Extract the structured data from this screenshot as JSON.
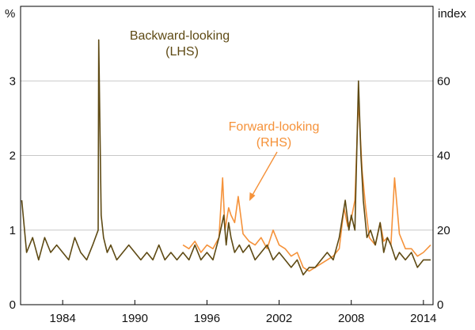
{
  "chart_data": {
    "type": "line",
    "left_axis": {
      "unit": "%",
      "ylim": [
        0,
        4
      ],
      "ticks": [
        0,
        1,
        2,
        3
      ]
    },
    "right_axis": {
      "unit": "index",
      "ylim": [
        0,
        80
      ],
      "ticks": [
        0,
        20,
        40,
        60
      ]
    },
    "x_axis": {
      "xlim": [
        1980.5,
        2014.8
      ],
      "ticks": [
        1984,
        1990,
        1996,
        2002,
        2008,
        2014
      ]
    },
    "grid": "horizontal",
    "colors": {
      "backward": "#5e4a14",
      "forward": "#f5923a"
    },
    "annotations": {
      "backward_title": "Backward-looking",
      "backward_sub": "(LHS)",
      "forward_title": "Forward-looking",
      "forward_sub": "(RHS)"
    },
    "series": [
      {
        "name": "Backward-looking",
        "axis": "left",
        "x": [
          1980.6,
          1981.0,
          1981.5,
          1982.0,
          1982.5,
          1983.0,
          1983.5,
          1984.0,
          1984.5,
          1985.0,
          1985.5,
          1986.0,
          1986.5,
          1986.95,
          1987.0,
          1987.2,
          1987.4,
          1987.7,
          1988.0,
          1988.5,
          1989.0,
          1989.5,
          1990.0,
          1990.5,
          1991.0,
          1991.5,
          1992.0,
          1992.5,
          1993.0,
          1993.5,
          1994.0,
          1994.5,
          1995.0,
          1995.5,
          1996.0,
          1996.5,
          1997.0,
          1997.4,
          1997.6,
          1997.8,
          1998.0,
          1998.3,
          1998.7,
          1999.0,
          1999.5,
          2000.0,
          2000.5,
          2001.0,
          2001.5,
          2002.0,
          2002.5,
          2003.0,
          2003.5,
          2004.0,
          2004.5,
          2005.0,
          2005.5,
          2006.0,
          2006.5,
          2007.0,
          2007.5,
          2007.8,
          2008.0,
          2008.3,
          2008.6,
          2008.8,
          2009.0,
          2009.3,
          2009.6,
          2010.0,
          2010.4,
          2010.7,
          2011.0,
          2011.3,
          2011.7,
          2012.0,
          2012.5,
          2013.0,
          2013.5,
          2014.0,
          2014.6
        ],
        "y": [
          1.4,
          0.7,
          0.9,
          0.6,
          0.9,
          0.7,
          0.8,
          0.7,
          0.6,
          0.9,
          0.7,
          0.6,
          0.8,
          1.0,
          3.55,
          1.2,
          0.9,
          0.7,
          0.8,
          0.6,
          0.7,
          0.8,
          0.7,
          0.6,
          0.7,
          0.6,
          0.8,
          0.6,
          0.7,
          0.6,
          0.7,
          0.6,
          0.8,
          0.6,
          0.7,
          0.6,
          0.9,
          1.2,
          0.8,
          1.1,
          0.9,
          0.7,
          0.8,
          0.7,
          0.8,
          0.6,
          0.7,
          0.8,
          0.6,
          0.7,
          0.6,
          0.5,
          0.6,
          0.4,
          0.5,
          0.5,
          0.6,
          0.7,
          0.6,
          0.9,
          1.4,
          1.0,
          1.2,
          1.0,
          3.0,
          2.0,
          1.4,
          0.9,
          1.0,
          0.8,
          1.1,
          0.7,
          0.9,
          0.8,
          0.6,
          0.7,
          0.6,
          0.7,
          0.5,
          0.6,
          0.6
        ]
      },
      {
        "name": "Forward-looking",
        "axis": "right",
        "x": [
          1994.0,
          1994.5,
          1995.0,
          1995.5,
          1996.0,
          1996.5,
          1997.0,
          1997.3,
          1997.5,
          1997.8,
          1998.0,
          1998.3,
          1998.6,
          1999.0,
          1999.5,
          2000.0,
          2000.5,
          2001.0,
          2001.5,
          2002.0,
          2002.5,
          2003.0,
          2003.5,
          2004.0,
          2004.5,
          2005.0,
          2005.5,
          2006.0,
          2006.5,
          2007.0,
          2007.4,
          2007.7,
          2008.0,
          2008.3,
          2008.6,
          2008.9,
          2009.2,
          2009.5,
          2010.0,
          2010.4,
          2010.7,
          2011.0,
          2011.3,
          2011.6,
          2012.0,
          2012.5,
          2013.0,
          2013.5,
          2014.0,
          2014.6
        ],
        "y": [
          16,
          15,
          17,
          14,
          16,
          15,
          18,
          34,
          20,
          26,
          24,
          22,
          29,
          19,
          17,
          16,
          18,
          15,
          20,
          16,
          15,
          13,
          14,
          10,
          9,
          10,
          11,
          12,
          13,
          15,
          26,
          21,
          23,
          28,
          55,
          36,
          26,
          18,
          16,
          22,
          17,
          18,
          16,
          34,
          19,
          15,
          15,
          13,
          14,
          16
        ]
      }
    ]
  }
}
